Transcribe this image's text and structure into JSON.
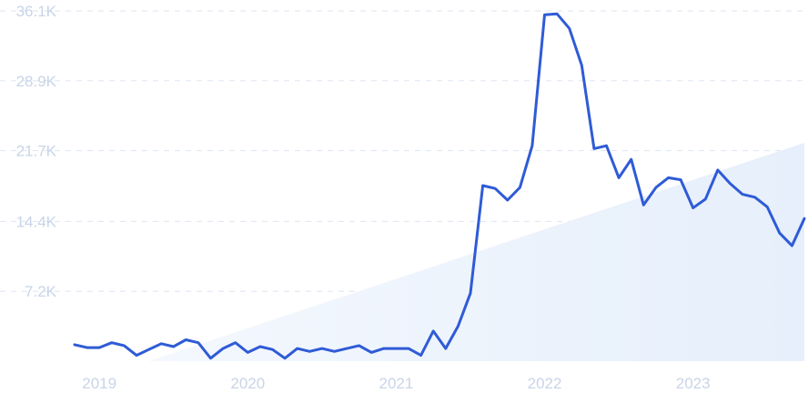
{
  "chart_data": {
    "type": "line",
    "title": "",
    "xlabel": "",
    "ylabel": "",
    "y_ticks": [
      "36.1K",
      "28.9K",
      "21.7K",
      "14.4K",
      "7.2K"
    ],
    "y_tick_values": [
      36100,
      28900,
      21700,
      14400,
      7200
    ],
    "ylim": [
      0,
      36100
    ],
    "x_ticks": [
      "2019",
      "2020",
      "2021",
      "2022",
      "2023"
    ],
    "x": [
      "2018-11",
      "2018-12",
      "2019-01",
      "2019-02",
      "2019-03",
      "2019-04",
      "2019-05",
      "2019-06",
      "2019-07",
      "2019-08",
      "2019-09",
      "2019-10",
      "2019-11",
      "2019-12",
      "2020-01",
      "2020-02",
      "2020-03",
      "2020-04",
      "2020-05",
      "2020-06",
      "2020-07",
      "2020-08",
      "2020-09",
      "2020-10",
      "2020-11",
      "2020-12",
      "2021-01",
      "2021-02",
      "2021-03",
      "2021-04",
      "2021-05",
      "2021-06",
      "2021-07",
      "2021-08",
      "2021-09",
      "2021-10",
      "2021-11",
      "2021-12",
      "2022-01",
      "2022-02",
      "2022-03",
      "2022-04",
      "2022-05",
      "2022-06",
      "2022-07",
      "2022-08",
      "2022-09",
      "2022-10",
      "2022-11",
      "2022-12",
      "2023-01",
      "2023-02",
      "2023-03",
      "2023-04",
      "2023-05",
      "2023-06",
      "2023-07",
      "2023-08",
      "2023-09",
      "2023-10"
    ],
    "series": [
      {
        "values": [
          1700,
          1400,
          1400,
          1900,
          1600,
          600,
          1200,
          1800,
          1500,
          2200,
          1900,
          300,
          1300,
          1900,
          900,
          1500,
          1200,
          300,
          1300,
          1000,
          1300,
          1000,
          1300,
          1600,
          900,
          1300,
          1300,
          1300,
          600,
          3100,
          1300,
          3600,
          7000,
          18100,
          17800,
          16600,
          17900,
          22200,
          35700,
          35800,
          34300,
          30500,
          21900,
          22200,
          18900,
          20800,
          16100,
          17900,
          18900,
          18700,
          15800,
          16700,
          19700,
          18300,
          17200,
          16900,
          15900,
          13200,
          11900,
          14700
        ]
      }
    ],
    "trend_line": {
      "start": 0,
      "end": 22500,
      "x_start": "2019-05",
      "x_end": "2023-10"
    },
    "grid": "dashed horizontal",
    "colors": {
      "line": "#2f5bd6",
      "trend_fill": "#eaf1fc",
      "tick_text": "#c9d4e8",
      "grid": "#dde5f2"
    }
  }
}
